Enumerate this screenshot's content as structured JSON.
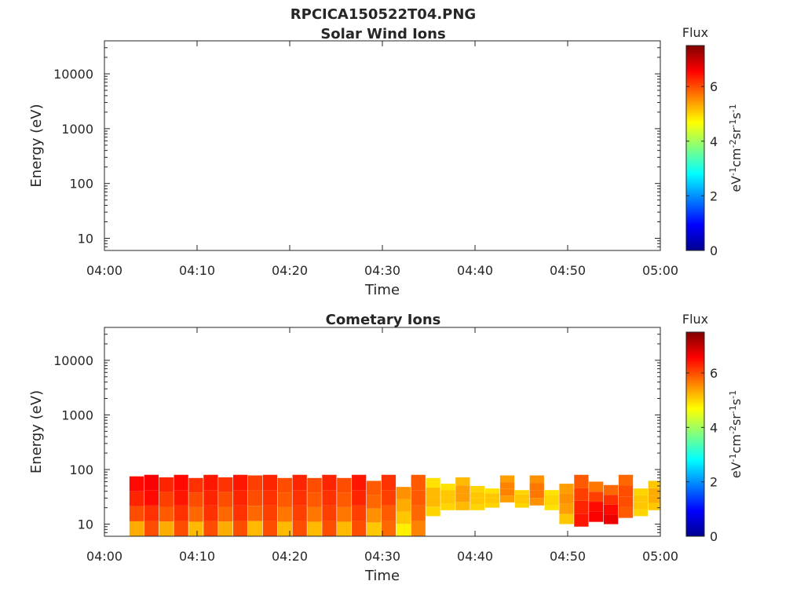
{
  "figure_title": "RPCICA150522T04.PNG",
  "colormap": [
    "#00008f",
    "#0000ff",
    "#0080ff",
    "#00ffff",
    "#80ff80",
    "#ffff00",
    "#ff8000",
    "#ff0000",
    "#800000"
  ],
  "chart_data": [
    {
      "type": "heatmap",
      "title": "Solar Wind Ions",
      "xlabel": "Time",
      "ylabel": "Energy (eV)",
      "x_ticks": [
        "04:00",
        "04:10",
        "04:20",
        "04:30",
        "04:40",
        "04:50",
        "05:00"
      ],
      "xlim_minutes": [
        0,
        60
      ],
      "y_scale": "log",
      "ylim": [
        6,
        40000
      ],
      "y_ticks": [
        10,
        100,
        1000,
        10000
      ],
      "y_tick_labels": [
        "10",
        "100",
        "1000",
        "10000"
      ],
      "colorbar": {
        "title": "Flux",
        "label": "eV^-1cm^-2sr^-1s^-1",
        "range": [
          0,
          7.5
        ],
        "ticks": [
          "0",
          "2",
          "4",
          "6"
        ]
      },
      "blocks": []
    },
    {
      "type": "heatmap",
      "title": "Cometary Ions",
      "xlabel": "Time",
      "ylabel": "Energy (eV)",
      "x_ticks": [
        "04:00",
        "04:10",
        "04:20",
        "04:30",
        "04:40",
        "04:50",
        "05:00"
      ],
      "xlim_minutes": [
        0,
        60
      ],
      "y_scale": "log",
      "ylim": [
        6,
        40000
      ],
      "y_ticks": [
        10,
        100,
        1000,
        10000
      ],
      "y_tick_labels": [
        "10",
        "100",
        "1000",
        "10000"
      ],
      "colorbar": {
        "title": "Flux",
        "label": "eV^-1cm^-2sr^-1s^-1",
        "range": [
          0,
          7.5
        ],
        "ticks": [
          "0",
          "2",
          "4",
          "6"
        ]
      },
      "blocks": [
        {
          "t0": 2.7,
          "t1": 4.3,
          "e_lo": 6,
          "e_hi": 75,
          "flux": [
            5.3,
            6.0,
            6.3,
            6.5
          ]
        },
        {
          "t0": 4.3,
          "t1": 5.9,
          "e_lo": 6,
          "e_hi": 80,
          "flux": [
            6.0,
            6.2,
            6.5,
            6.6
          ]
        },
        {
          "t0": 5.9,
          "t1": 7.5,
          "e_lo": 6,
          "e_hi": 72,
          "flux": [
            5.3,
            5.9,
            6.1,
            6.3
          ]
        },
        {
          "t0": 7.5,
          "t1": 9.1,
          "e_lo": 6,
          "e_hi": 80,
          "flux": [
            6.0,
            6.2,
            6.4,
            6.5
          ]
        },
        {
          "t0": 9.1,
          "t1": 10.7,
          "e_lo": 6,
          "e_hi": 70,
          "flux": [
            5.2,
            5.8,
            6.0,
            6.2
          ]
        },
        {
          "t0": 10.7,
          "t1": 12.3,
          "e_lo": 6,
          "e_hi": 80,
          "flux": [
            6.0,
            6.2,
            6.3,
            6.4
          ]
        },
        {
          "t0": 12.3,
          "t1": 13.9,
          "e_lo": 6,
          "e_hi": 72,
          "flux": [
            5.3,
            5.8,
            6.0,
            6.2
          ]
        },
        {
          "t0": 13.9,
          "t1": 15.5,
          "e_lo": 6,
          "e_hi": 80,
          "flux": [
            6.0,
            6.2,
            6.3,
            6.4
          ]
        },
        {
          "t0": 15.5,
          "t1": 17.1,
          "e_lo": 6,
          "e_hi": 78,
          "flux": [
            5.2,
            5.8,
            6.0,
            6.1
          ]
        },
        {
          "t0": 17.1,
          "t1": 18.7,
          "e_lo": 6,
          "e_hi": 80,
          "flux": [
            6.0,
            6.1,
            6.2,
            6.3
          ]
        },
        {
          "t0": 18.7,
          "t1": 20.3,
          "e_lo": 6,
          "e_hi": 70,
          "flux": [
            5.2,
            5.7,
            5.9,
            6.0
          ]
        },
        {
          "t0": 20.3,
          "t1": 21.9,
          "e_lo": 6,
          "e_hi": 80,
          "flux": [
            6.0,
            6.1,
            6.2,
            6.3
          ]
        },
        {
          "t0": 21.9,
          "t1": 23.5,
          "e_lo": 6,
          "e_hi": 70,
          "flux": [
            5.2,
            5.7,
            5.9,
            6.0
          ]
        },
        {
          "t0": 23.5,
          "t1": 25.1,
          "e_lo": 6,
          "e_hi": 80,
          "flux": [
            6.0,
            6.1,
            6.2,
            6.3
          ]
        },
        {
          "t0": 25.1,
          "t1": 26.7,
          "e_lo": 6,
          "e_hi": 70,
          "flux": [
            5.2,
            5.7,
            5.9,
            6.0
          ]
        },
        {
          "t0": 26.7,
          "t1": 28.3,
          "e_lo": 6,
          "e_hi": 80,
          "flux": [
            6.0,
            6.1,
            6.3,
            6.4
          ]
        },
        {
          "t0": 28.3,
          "t1": 29.9,
          "e_lo": 6,
          "e_hi": 62,
          "flux": [
            5.1,
            5.5,
            5.8,
            5.9
          ]
        },
        {
          "t0": 29.9,
          "t1": 31.5,
          "e_lo": 6,
          "e_hi": 80,
          "flux": [
            5.8,
            5.9,
            6.1,
            6.2
          ]
        },
        {
          "t0": 31.5,
          "t1": 33.1,
          "e_lo": 6,
          "e_hi": 48,
          "flux": [
            4.8,
            5.1,
            5.3,
            5.5
          ]
        },
        {
          "t0": 33.1,
          "t1": 34.7,
          "e_lo": 6,
          "e_hi": 80,
          "flux": [
            5.6,
            5.8,
            5.9,
            5.9
          ]
        },
        {
          "t0": 34.7,
          "t1": 36.3,
          "e_lo": 14,
          "e_hi": 70,
          "flux": [
            5.0,
            5.2,
            5.2,
            4.9
          ]
        },
        {
          "t0": 36.3,
          "t1": 37.9,
          "e_lo": 18,
          "e_hi": 55,
          "flux": [
            5.0,
            5.1,
            5.1,
            4.9
          ]
        },
        {
          "t0": 37.9,
          "t1": 39.5,
          "e_lo": 18,
          "e_hi": 72,
          "flux": [
            5.2,
            5.4,
            5.4,
            5.2
          ]
        },
        {
          "t0": 39.5,
          "t1": 41.1,
          "e_lo": 18,
          "e_hi": 50,
          "flux": [
            5.0,
            5.1,
            5.1,
            5.0
          ]
        },
        {
          "t0": 41.1,
          "t1": 42.7,
          "e_lo": 20,
          "e_hi": 45,
          "flux": [
            5.0,
            5.1,
            5.1,
            4.9
          ]
        },
        {
          "t0": 42.7,
          "t1": 44.3,
          "e_lo": 25,
          "e_hi": 78,
          "flux": [
            5.4,
            5.6,
            5.6,
            5.4
          ]
        },
        {
          "t0": 44.3,
          "t1": 45.9,
          "e_lo": 20,
          "e_hi": 42,
          "flux": [
            5.0,
            5.1,
            5.1,
            5.0
          ]
        },
        {
          "t0": 45.9,
          "t1": 47.5,
          "e_lo": 22,
          "e_hi": 78,
          "flux": [
            5.5,
            5.7,
            5.7,
            5.5
          ]
        },
        {
          "t0": 47.5,
          "t1": 49.1,
          "e_lo": 18,
          "e_hi": 42,
          "flux": [
            4.9,
            5.0,
            5.0,
            4.9
          ]
        },
        {
          "t0": 49.1,
          "t1": 50.7,
          "e_lo": 10,
          "e_hi": 55,
          "flux": [
            5.1,
            5.4,
            5.5,
            5.4
          ]
        },
        {
          "t0": 50.7,
          "t1": 52.3,
          "e_lo": 9,
          "e_hi": 80,
          "flux": [
            6.4,
            6.3,
            6.1,
            5.9
          ]
        },
        {
          "t0": 52.3,
          "t1": 53.9,
          "e_lo": 11,
          "e_hi": 60,
          "flux": [
            6.6,
            6.5,
            6.1,
            5.7
          ]
        },
        {
          "t0": 53.9,
          "t1": 55.5,
          "e_lo": 10,
          "e_hi": 52,
          "flux": [
            6.7,
            6.5,
            6.2,
            5.8
          ]
        },
        {
          "t0": 55.5,
          "t1": 57.1,
          "e_lo": 13,
          "e_hi": 80,
          "flux": [
            5.9,
            6.0,
            6.0,
            5.8
          ]
        },
        {
          "t0": 57.1,
          "t1": 58.7,
          "e_lo": 14,
          "e_hi": 45,
          "flux": [
            5.0,
            5.1,
            5.1,
            5.0
          ]
        },
        {
          "t0": 58.7,
          "t1": 60.0,
          "e_lo": 18,
          "e_hi": 62,
          "flux": [
            5.1,
            5.3,
            5.3,
            5.1
          ]
        }
      ]
    }
  ]
}
